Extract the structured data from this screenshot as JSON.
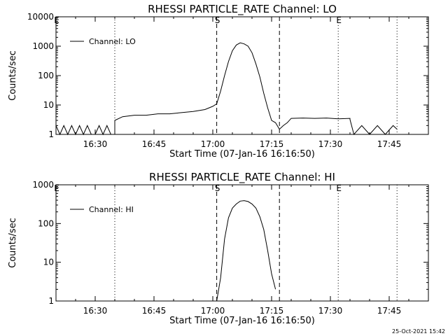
{
  "chart_data": [
    {
      "type": "line",
      "title": "RHESSI PARTICLE_RATE Channel: LO",
      "xlabel": "Start Time (07-Jan-16 16:16:50)",
      "ylabel": "Counts/sec",
      "yscale": "log",
      "ylim": [
        1,
        10000
      ],
      "yticks": [
        1,
        10,
        100,
        1000,
        10000
      ],
      "ytick_labels": [
        "1",
        "10",
        "100",
        "1000",
        "10000"
      ],
      "xlim": [
        "16:20",
        "17:55"
      ],
      "xticks": [
        "16:30",
        "16:45",
        "17:00",
        "17:15",
        "17:30",
        "17:45"
      ],
      "legend": {
        "label": "Channel: LO",
        "position": "top-left"
      },
      "markers": [
        {
          "label": "E",
          "time": "16:20",
          "style": "dotted"
        },
        {
          "label": "",
          "time": "16:35",
          "style": "dotted"
        },
        {
          "label": "S",
          "time": "17:01",
          "style": "dashed"
        },
        {
          "label": "",
          "time": "17:17",
          "style": "dashed"
        },
        {
          "label": "E",
          "time": "17:32",
          "style": "dotted"
        },
        {
          "label": "",
          "time": "17:47",
          "style": "dotted"
        }
      ],
      "series": [
        {
          "name": "Channel: LO",
          "x": [
            "16:20",
            "16:21",
            "16:22",
            "16:23",
            "16:24",
            "16:25",
            "16:26",
            "16:27",
            "16:28",
            "16:29",
            "16:30",
            "16:31",
            "16:32",
            "16:33",
            "16:34",
            "16:35",
            "16:35",
            "16:37",
            "16:40",
            "16:43",
            "16:46",
            "16:49",
            "16:52",
            "16:55",
            "16:58",
            "17:00",
            "17:01",
            "17:02",
            "17:03",
            "17:04",
            "17:05",
            "17:06",
            "17:07",
            "17:08",
            "17:09",
            "17:10",
            "17:11",
            "17:12",
            "17:13",
            "17:14",
            "17:15",
            "17:16",
            "17:17",
            "17:18",
            "17:19",
            "17:20",
            "17:23",
            "17:26",
            "17:29",
            "17:32",
            "17:35",
            "17:35",
            "17:36",
            "17:38",
            "17:40",
            "17:42",
            "17:44",
            "17:46",
            "17:47"
          ],
          "values": [
            2,
            1,
            2,
            1,
            2,
            1,
            2,
            1,
            2,
            1,
            1,
            2,
            1,
            2,
            1,
            1,
            3,
            4,
            4.5,
            4.5,
            5,
            5,
            5.5,
            6,
            7,
            9,
            11,
            30,
            100,
            300,
            700,
            1100,
            1300,
            1200,
            1000,
            600,
            250,
            90,
            25,
            8,
            3,
            2.5,
            1.5,
            2,
            2.5,
            3.5,
            3.6,
            3.5,
            3.6,
            3.4,
            3.5,
            3.2,
            1,
            2,
            1,
            2,
            1,
            2,
            1.5
          ]
        }
      ]
    },
    {
      "type": "line",
      "title": "RHESSI PARTICLE_RATE Channel: HI",
      "xlabel": "Start Time (07-Jan-16 16:16:50)",
      "ylabel": "Counts/sec",
      "yscale": "log",
      "ylim": [
        1,
        1000
      ],
      "yticks": [
        1,
        10,
        100,
        1000
      ],
      "ytick_labels": [
        "1",
        "10",
        "100",
        "1000"
      ],
      "xlim": [
        "16:20",
        "17:55"
      ],
      "xticks": [
        "16:30",
        "16:45",
        "17:00",
        "17:15",
        "17:30",
        "17:45"
      ],
      "legend": {
        "label": "Channel: HI",
        "position": "top-left"
      },
      "markers": [
        {
          "label": "E",
          "time": "16:20",
          "style": "dotted"
        },
        {
          "label": "",
          "time": "16:35",
          "style": "dotted"
        },
        {
          "label": "S",
          "time": "17:01",
          "style": "dashed"
        },
        {
          "label": "",
          "time": "17:17",
          "style": "dashed"
        },
        {
          "label": "E",
          "time": "17:32",
          "style": "dotted"
        },
        {
          "label": "",
          "time": "17:47",
          "style": "dotted"
        }
      ],
      "series": [
        {
          "name": "Channel: HI",
          "x": [
            "17:01",
            "17:02",
            "17:03",
            "17:04",
            "17:05",
            "17:06",
            "17:07",
            "17:08",
            "17:09",
            "17:10",
            "17:11",
            "17:12",
            "17:13",
            "17:14",
            "17:15",
            "17:16"
          ],
          "values": [
            1,
            4,
            40,
            140,
            250,
            320,
            380,
            390,
            370,
            320,
            250,
            150,
            70,
            20,
            5,
            2
          ]
        }
      ]
    }
  ],
  "footer": {
    "timestamp": "25-Oct-2021 15:42"
  }
}
